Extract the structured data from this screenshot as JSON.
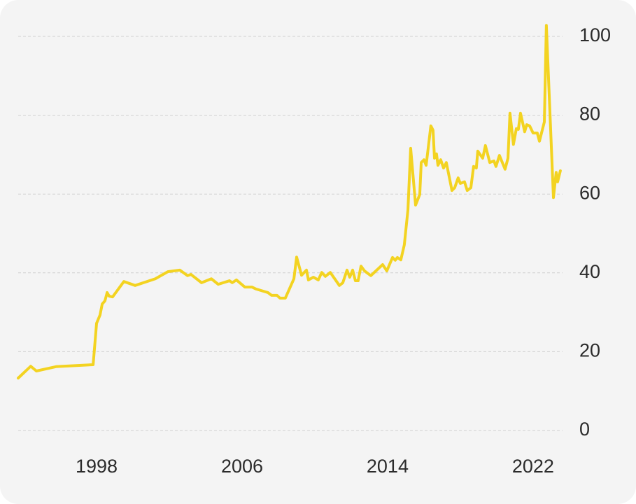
{
  "chart_data": {
    "type": "line",
    "x": [
      1993.69,
      1994.38,
      1994.69,
      1995.77,
      1997.81,
      1998.0,
      1998.19,
      1998.31,
      1998.46,
      1998.58,
      1998.69,
      1998.88,
      1999.5,
      2000.12,
      2001.23,
      2001.92,
      2002.58,
      2003.0,
      2003.19,
      2003.77,
      2004.31,
      2004.69,
      2005.31,
      2005.46,
      2005.69,
      2006.15,
      2006.54,
      2006.77,
      2007.42,
      2007.62,
      2007.92,
      2008.08,
      2008.38,
      2008.85,
      2009.0,
      2009.27,
      2009.54,
      2009.65,
      2009.92,
      2010.19,
      2010.38,
      2010.58,
      2010.85,
      2011.35,
      2011.54,
      2011.77,
      2011.92,
      2012.08,
      2012.23,
      2012.38,
      2012.54,
      2012.73,
      2013.08,
      2013.73,
      2013.96,
      2014.27,
      2014.42,
      2014.54,
      2014.73,
      2014.92,
      2015.12,
      2015.27,
      2015.54,
      2015.77,
      2015.85,
      2016.0,
      2016.12,
      2016.38,
      2016.5,
      2016.58,
      2016.69,
      2016.77,
      2016.92,
      2017.08,
      2017.23,
      2017.54,
      2017.69,
      2017.88,
      2018.0,
      2018.23,
      2018.38,
      2018.58,
      2018.73,
      2018.88,
      2018.96,
      2019.23,
      2019.38,
      2019.62,
      2019.85,
      2019.96,
      2020.15,
      2020.46,
      2020.62,
      2020.73,
      2020.92,
      2021.08,
      2021.19,
      2021.31,
      2021.54,
      2021.65,
      2021.81,
      2022.0,
      2022.23,
      2022.35,
      2022.62,
      2022.73,
      2023.12,
      2023.27,
      2023.35,
      2023.5
    ],
    "series": [
      {
        "color": "#f3d321",
        "values": [
          13.3,
          16.3,
          15.1,
          16.2,
          16.7,
          27.2,
          29.3,
          32.1,
          32.9,
          35.0,
          34.1,
          33.9,
          37.8,
          36.8,
          38.5,
          40.3,
          40.7,
          39.3,
          39.6,
          37.5,
          38.5,
          37.1,
          38.0,
          37.5,
          38.2,
          36.4,
          36.4,
          35.9,
          35.0,
          34.3,
          34.3,
          33.6,
          33.6,
          38.5,
          44.0,
          39.4,
          40.7,
          38.2,
          38.9,
          38.2,
          40.1,
          39.1,
          40.1,
          36.8,
          37.5,
          40.7,
          38.9,
          40.7,
          38.0,
          38.0,
          41.7,
          40.5,
          39.3,
          42.1,
          40.5,
          43.9,
          43.2,
          43.9,
          43.3,
          47.1,
          56.0,
          71.6,
          57.2,
          59.9,
          68.0,
          68.7,
          67.3,
          77.3,
          76.2,
          69.1,
          70.2,
          67.3,
          68.7,
          66.6,
          68.0,
          60.9,
          61.6,
          64.1,
          62.7,
          63.1,
          60.9,
          61.6,
          67.0,
          66.6,
          70.9,
          69.1,
          72.3,
          68.0,
          68.4,
          67.0,
          69.8,
          66.3,
          69.1,
          80.5,
          72.6,
          76.6,
          76.4,
          80.5,
          75.8,
          77.6,
          77.3,
          75.5,
          75.5,
          73.4,
          78.3,
          102.8,
          59.1,
          65.5,
          63.1,
          65.9
        ]
      }
    ],
    "xlim": [
      1993.69,
      2023.62
    ],
    "xticks": [
      1998,
      2006,
      2014,
      2022
    ],
    "ylim": [
      0,
      100
    ],
    "yticks": [
      0,
      20,
      40,
      60,
      80,
      100
    ],
    "grid": true
  }
}
